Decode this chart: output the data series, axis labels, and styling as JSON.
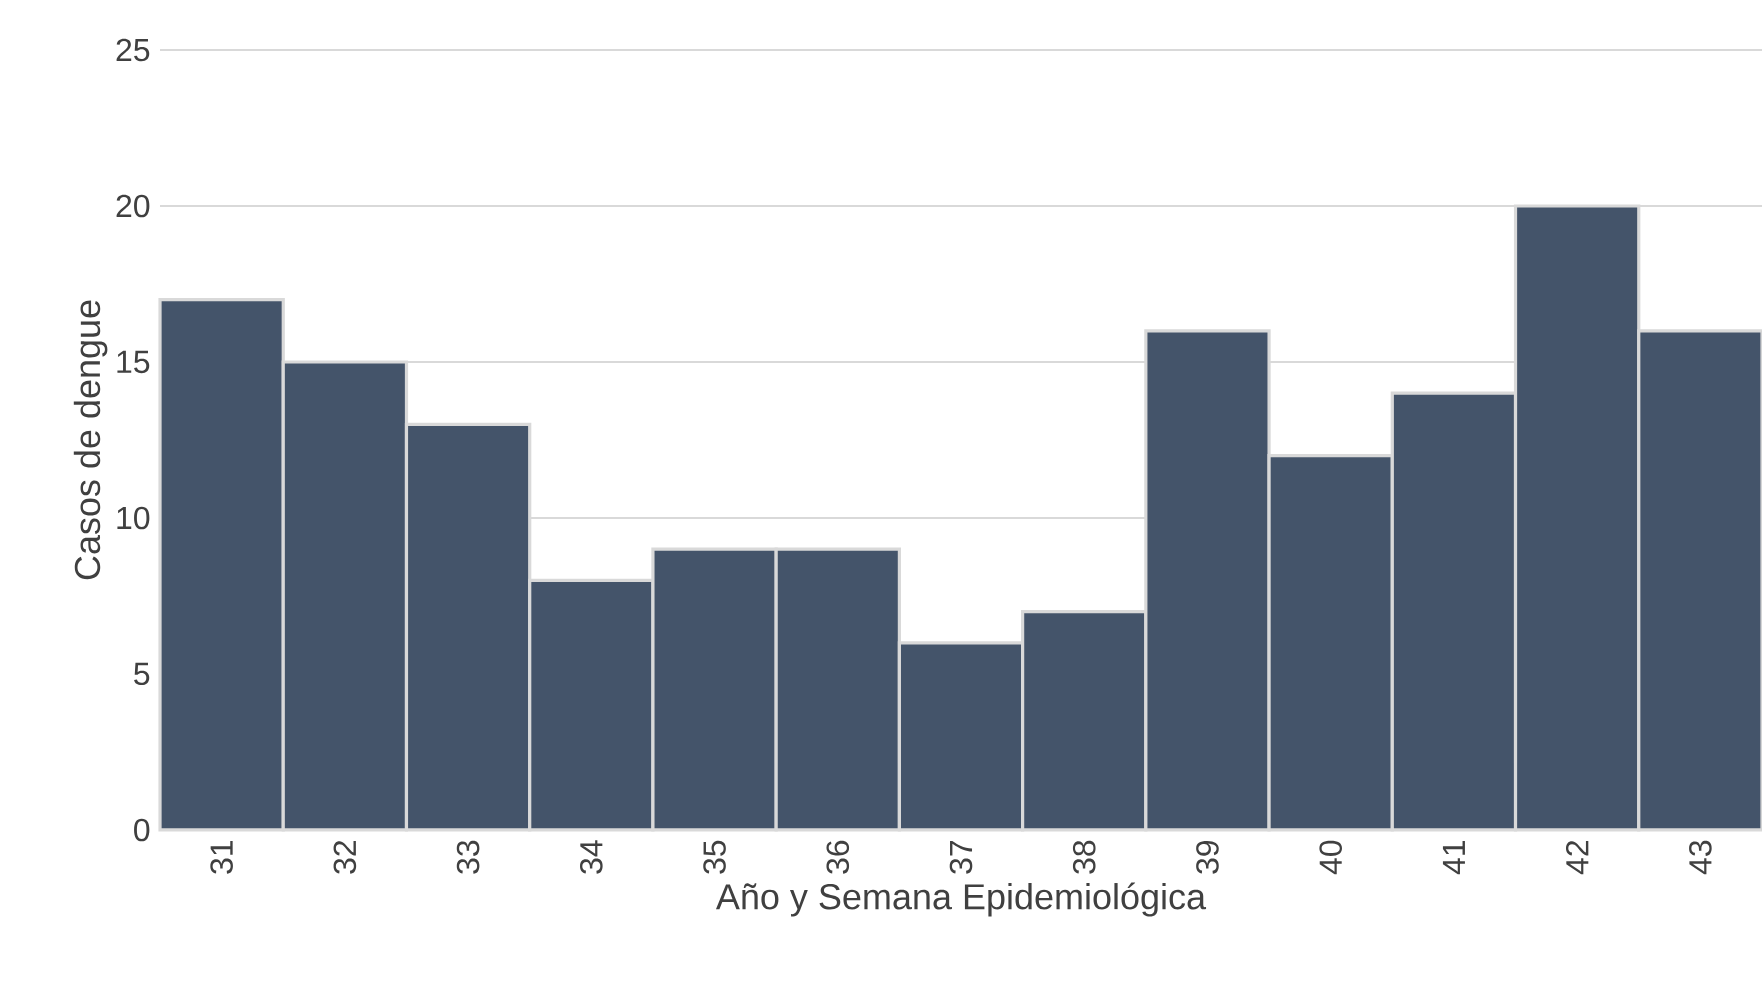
{
  "chart_data": {
    "type": "bar",
    "xlabel": "Año y Semana Epidemiológica",
    "ylabel": "Casos de dengue",
    "categories": [
      "31",
      "32",
      "33",
      "34",
      "35",
      "36",
      "37",
      "38",
      "39",
      "40",
      "41",
      "42",
      "43"
    ],
    "values": [
      17,
      15,
      13,
      8,
      9,
      9,
      6,
      7,
      16,
      12,
      14,
      20,
      16
    ],
    "color": "#44546a",
    "ylim": [
      0,
      25
    ],
    "yticks": [
      0,
      5,
      10,
      15,
      20,
      25
    ],
    "grid": "y"
  }
}
